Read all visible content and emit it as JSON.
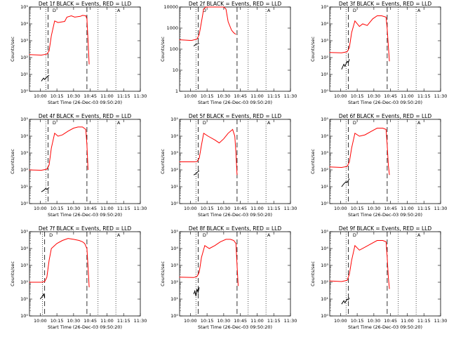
{
  "chart_data": [
    {
      "type": "line",
      "title": "Det 1f BLACK = Events, RED = LLD",
      "xlabel": "Start Time (26-Dec-03 09:50:20)",
      "ylabel": "Counts/sec",
      "log_y": true,
      "ylim": [
        1,
        100000
      ],
      "y_ticks": [
        "10⁰",
        "10¹",
        "10²",
        "10³",
        "10⁴",
        "10⁵"
      ],
      "x_ticks": [
        "10:00",
        "10:15",
        "10:30",
        "10:45",
        "11:00",
        "11:15",
        "11:30"
      ],
      "series": [
        {
          "color": "#ff0000",
          "x": [
            "09:50",
            "10:01",
            "10:06",
            "10:08",
            "10:10",
            "10:13",
            "10:16",
            "10:22",
            "10:24",
            "10:28",
            "10:31",
            "10:36",
            "10:38",
            "10:41",
            "10:42",
            "10:43",
            "10:44"
          ],
          "y": [
            150,
            140,
            160,
            250,
            2000,
            15000,
            12000,
            14000,
            25000,
            30000,
            25000,
            28000,
            32000,
            30000,
            20000,
            1000,
            40
          ]
        },
        {
          "color": "#000000",
          "x": [
            "10:01",
            "10:03",
            "10:04",
            "10:06",
            "10:07",
            "10:08"
          ],
          "y": [
            4,
            6,
            5,
            7,
            8,
            9
          ]
        }
      ],
      "vlines_dotted": [
        "10:05",
        "10:52",
        "11:08"
      ],
      "vlines_dashed": [
        "10:07",
        "10:42"
      ],
      "markers": [
        "D",
        "A"
      ]
    },
    {
      "type": "line",
      "title": "Det 2f BLACK = Events, RED = LLD",
      "xlabel": "Start Time (26-Dec-03 09:50:20)",
      "ylabel": "Counts/sec",
      "log_y": true,
      "ylim": [
        1,
        10000
      ],
      "y_ticks": [
        "1",
        "10",
        "100",
        "1000",
        "10000"
      ],
      "x_ticks": [
        "10:00",
        "10:15",
        "10:30",
        "10:45",
        "11:00",
        "11:15",
        "11:30"
      ],
      "series": [
        {
          "color": "#ff0000",
          "x": [
            "09:50",
            "10:01",
            "10:06",
            "10:08",
            "10:10",
            "10:12",
            "10:14",
            "10:17",
            "10:30",
            "10:32",
            "10:34",
            "10:37",
            "10:39",
            "10:41"
          ],
          "y": [
            280,
            260,
            300,
            500,
            2000,
            8000,
            10000,
            10000,
            10000,
            8000,
            2000,
            800,
            600,
            500
          ]
        },
        {
          "color": "#000000",
          "x": [
            "10:03",
            "10:05",
            "10:07",
            "10:08"
          ],
          "y": [
            140,
            170,
            180,
            190
          ]
        }
      ],
      "vlines_dotted": [
        "10:05",
        "10:52",
        "11:08"
      ],
      "vlines_dashed": [
        "10:07",
        "10:42"
      ],
      "markers": [
        "D",
        "A"
      ]
    },
    {
      "type": "line",
      "title": "Det 3f BLACK = Events, RED = LLD",
      "xlabel": "Start Time (26-Dec-03 09:50:20)",
      "ylabel": "Counts/sec",
      "log_y": true,
      "ylim": [
        1,
        100000
      ],
      "y_ticks": [
        "10⁰",
        "10¹",
        "10²",
        "10³",
        "10⁴",
        "10⁵"
      ],
      "x_ticks": [
        "10:00",
        "10:15",
        "10:30",
        "10:45",
        "11:00",
        "11:15",
        "11:30"
      ],
      "series": [
        {
          "color": "#ff0000",
          "x": [
            "09:50",
            "10:01",
            "10:06",
            "10:08",
            "10:10",
            "10:13",
            "10:17",
            "10:20",
            "10:24",
            "10:29",
            "10:33",
            "10:37",
            "10:41",
            "10:42",
            "10:43",
            "10:44"
          ],
          "y": [
            200,
            190,
            220,
            400,
            3000,
            15000,
            7000,
            10000,
            8000,
            20000,
            30000,
            30000,
            25000,
            5000,
            500,
            60
          ]
        },
        {
          "color": "#000000",
          "x": [
            "10:01",
            "10:03",
            "10:04",
            "10:06",
            "10:07",
            "10:08"
          ],
          "y": [
            20,
            40,
            30,
            60,
            50,
            80
          ]
        }
      ],
      "vlines_dotted": [
        "10:05",
        "10:52",
        "11:08"
      ],
      "vlines_dashed": [
        "10:07",
        "10:42"
      ],
      "markers": [
        "D",
        "A"
      ]
    },
    {
      "type": "line",
      "title": "Det 4f BLACK = Events, RED = LLD",
      "xlabel": "Start Time (26-Dec-03 09:50:20)",
      "ylabel": "Counts/sec",
      "log_y": true,
      "ylim": [
        1,
        100000
      ],
      "y_ticks": [
        "10⁰",
        "10¹",
        "10²",
        "10³",
        "10⁴",
        "10⁵"
      ],
      "x_ticks": [
        "10:00",
        "10:15",
        "10:30",
        "10:45",
        "11:00",
        "11:15",
        "11:30"
      ],
      "series": [
        {
          "color": "#ff0000",
          "x": [
            "09:50",
            "10:01",
            "10:06",
            "10:08",
            "10:10",
            "10:13",
            "10:16",
            "10:20",
            "10:25",
            "10:30",
            "10:34",
            "10:38",
            "10:41",
            "10:42",
            "10:43"
          ],
          "y": [
            100,
            95,
            110,
            200,
            2000,
            15000,
            10000,
            12000,
            20000,
            30000,
            35000,
            35000,
            25000,
            3000,
            100
          ]
        },
        {
          "color": "#000000",
          "x": [
            "10:01",
            "10:03",
            "10:05",
            "10:06",
            "10:08"
          ],
          "y": [
            5,
            6,
            8,
            7,
            9
          ]
        }
      ],
      "vlines_dotted": [
        "10:05",
        "10:52",
        "11:08"
      ],
      "vlines_dashed": [
        "10:07",
        "10:42"
      ],
      "markers": [
        "D",
        "A"
      ]
    },
    {
      "type": "line",
      "title": "Det 5f BLACK = Events, RED = LLD",
      "xlabel": "Start Time (26-Dec-03 09:50:20)",
      "ylabel": "Counts/sec",
      "log_y": true,
      "ylim": [
        1,
        100000
      ],
      "y_ticks": [
        "10⁰",
        "10¹",
        "10²",
        "10³",
        "10⁴",
        "10⁵"
      ],
      "x_ticks": [
        "10:00",
        "10:15",
        "10:30",
        "10:45",
        "11:00",
        "11:15",
        "11:30"
      ],
      "series": [
        {
          "color": "#ff0000",
          "x": [
            "09:50",
            "10:03",
            "10:06",
            "10:08",
            "10:10",
            "10:12",
            "10:16",
            "10:22",
            "10:26",
            "10:30",
            "10:34",
            "10:38",
            "10:40",
            "10:41",
            "10:42"
          ],
          "y": [
            300,
            300,
            310,
            500,
            3000,
            15000,
            10000,
            6000,
            4000,
            7000,
            15000,
            25000,
            10000,
            1000,
            50
          ]
        },
        {
          "color": "#000000",
          "x": [
            "10:03",
            "10:05",
            "10:07",
            "10:08"
          ],
          "y": [
            50,
            60,
            80,
            90
          ]
        }
      ],
      "vlines_dotted": [
        "10:05",
        "10:52",
        "11:08"
      ],
      "vlines_dashed": [
        "10:07",
        "10:42"
      ],
      "markers": [
        "D",
        "A"
      ]
    },
    {
      "type": "line",
      "title": "Det 6f BLACK = Events, RED = LLD",
      "xlabel": "Start Time (26-Dec-03 09:50:20)",
      "ylabel": "Counts/sec",
      "log_y": true,
      "ylim": [
        1,
        100000
      ],
      "y_ticks": [
        "10⁰",
        "10¹",
        "10²",
        "10³",
        "10⁴",
        "10⁵"
      ],
      "x_ticks": [
        "10:00",
        "10:15",
        "10:30",
        "10:45",
        "11:00",
        "11:15",
        "11:30"
      ],
      "series": [
        {
          "color": "#ff0000",
          "x": [
            "09:50",
            "10:01",
            "10:06",
            "10:08",
            "10:10",
            "10:13",
            "10:17",
            "10:22",
            "10:28",
            "10:33",
            "10:38",
            "10:41",
            "10:42",
            "10:43",
            "10:44"
          ],
          "y": [
            150,
            140,
            160,
            300,
            2000,
            15000,
            10000,
            12000,
            20000,
            30000,
            30000,
            25000,
            3000,
            200,
            50
          ]
        },
        {
          "color": "#000000",
          "x": [
            "10:01",
            "10:03",
            "10:05",
            "10:06",
            "10:08"
          ],
          "y": [
            10,
            15,
            20,
            18,
            30
          ]
        }
      ],
      "vlines_dotted": [
        "10:05",
        "10:52",
        "11:08"
      ],
      "vlines_dashed": [
        "10:07",
        "10:42"
      ],
      "markers": [
        "D",
        "A"
      ]
    },
    {
      "type": "line",
      "title": "Det 7f BLACK = Events, RED = LLD",
      "xlabel": "Start Time (26-Dec-03 09:50:20)",
      "ylabel": "Counts/sec",
      "log_y": true,
      "ylim": [
        1,
        100000
      ],
      "y_ticks": [
        "10⁰",
        "10¹",
        "10²",
        "10³",
        "10⁴",
        "10⁵"
      ],
      "x_ticks": [
        "10:00",
        "10:15",
        "10:30",
        "10:45",
        "11:00",
        "11:15",
        "11:30"
      ],
      "series": [
        {
          "color": "#ff0000",
          "x": [
            "09:50",
            "10:01",
            "10:04",
            "10:06",
            "10:08",
            "10:10",
            "10:15",
            "10:20",
            "10:25",
            "10:30",
            "10:35",
            "10:38",
            "10:40",
            "10:42",
            "10:43",
            "10:44"
          ],
          "y": [
            100,
            100,
            110,
            200,
            2000,
            10000,
            20000,
            30000,
            40000,
            35000,
            30000,
            25000,
            20000,
            10000,
            800,
            50
          ]
        },
        {
          "color": "#000000",
          "x": [
            "10:00",
            "10:02",
            "10:03",
            "10:04"
          ],
          "y": [
            10,
            15,
            20,
            12
          ]
        }
      ],
      "vlines_dotted": [
        "10:02",
        "10:52",
        "11:08"
      ],
      "vlines_dashed": [
        "10:04",
        "10:42"
      ],
      "markers": [
        "D",
        "A"
      ]
    },
    {
      "type": "line",
      "title": "Det 8f BLACK = Events, RED = LLD",
      "xlabel": "Start Time (26-Dec-03 09:50:20)",
      "ylabel": "Counts/sec",
      "log_y": true,
      "ylim": [
        1,
        100000
      ],
      "y_ticks": [
        "10⁰",
        "10¹",
        "10²",
        "10³",
        "10⁴",
        "10⁵"
      ],
      "x_ticks": [
        "10:00",
        "10:15",
        "10:30",
        "10:45",
        "11:00",
        "11:15",
        "11:30"
      ],
      "series": [
        {
          "color": "#ff0000",
          "x": [
            "09:50",
            "10:03",
            "10:06",
            "10:08",
            "10:10",
            "10:13",
            "10:17",
            "10:22",
            "10:27",
            "10:32",
            "10:36",
            "10:39",
            "10:41",
            "10:42",
            "10:43"
          ],
          "y": [
            200,
            190,
            220,
            400,
            3000,
            15000,
            10000,
            15000,
            25000,
            35000,
            35000,
            30000,
            20000,
            1000,
            60
          ]
        },
        {
          "color": "#000000",
          "x": [
            "10:03",
            "10:04",
            "10:05",
            "10:06",
            "10:07",
            "10:08"
          ],
          "y": [
            20,
            30,
            15,
            40,
            25,
            50
          ]
        }
      ],
      "vlines_dotted": [
        "10:05",
        "10:52",
        "11:08"
      ],
      "vlines_dashed": [
        "10:07",
        "10:42"
      ],
      "markers": [
        "D",
        "A"
      ]
    },
    {
      "type": "line",
      "title": "Det 9f BLACK = Events, RED = LLD",
      "xlabel": "Start Time (26-Dec-03 09:50:20)",
      "ylabel": "Counts/sec",
      "log_y": true,
      "ylim": [
        1,
        100000
      ],
      "y_ticks": [
        "10⁰",
        "10¹",
        "10²",
        "10³",
        "10⁴",
        "10⁵"
      ],
      "x_ticks": [
        "10:00",
        "10:15",
        "10:30",
        "10:45",
        "11:00",
        "11:15",
        "11:30"
      ],
      "series": [
        {
          "color": "#ff0000",
          "x": [
            "09:50",
            "10:01",
            "10:06",
            "10:08",
            "10:10",
            "10:13",
            "10:17",
            "10:22",
            "10:28",
            "10:33",
            "10:38",
            "10:41",
            "10:42",
            "10:43",
            "10:44"
          ],
          "y": [
            120,
            110,
            130,
            300,
            2000,
            15000,
            8000,
            12000,
            20000,
            30000,
            30000,
            25000,
            3000,
            200,
            40
          ]
        },
        {
          "color": "#000000",
          "x": [
            "10:01",
            "10:03",
            "10:04",
            "10:06",
            "10:07",
            "10:08"
          ],
          "y": [
            5,
            8,
            6,
            10,
            9,
            12
          ]
        }
      ],
      "vlines_dotted": [
        "10:05",
        "10:52",
        "11:08"
      ],
      "vlines_dashed": [
        "10:07",
        "10:42"
      ],
      "markers": [
        "D",
        "A"
      ]
    }
  ]
}
